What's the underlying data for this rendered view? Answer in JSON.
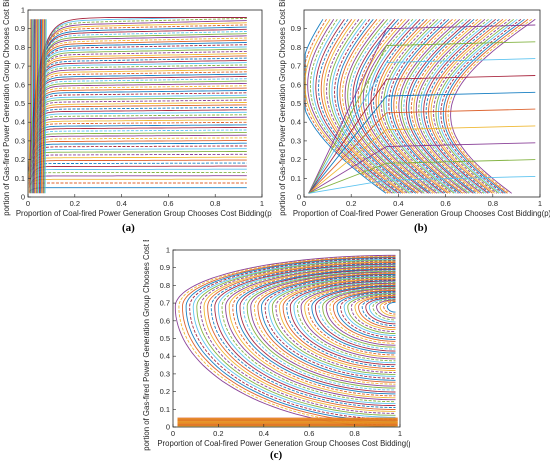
{
  "chart_data": [
    {
      "id": "a",
      "type": "line",
      "caption": "(a)",
      "title": "",
      "xlabel": "Proportion of Coal-fired Power Generation Group Chooses Cost Bidding(p)",
      "ylabel": "portion of Gas-fired Power Generation Group Chooses Cost Bidd",
      "xlim": [
        0,
        1
      ],
      "ylim": [
        0,
        1
      ],
      "xticks": [
        "0",
        "0.2",
        "0.4",
        "0.6",
        "0.8",
        "1"
      ],
      "yticks": [
        "0",
        "0.1",
        "0.2",
        "0.3",
        "0.4",
        "0.5",
        "0.6",
        "0.7",
        "0.8",
        "0.9",
        "1"
      ],
      "pattern": "trajectories rise steeply from p≈0 then flatten toward the upper right",
      "series_count": 70
    },
    {
      "id": "b",
      "type": "line",
      "caption": "(b)",
      "title": "",
      "xlabel": "Proportion of Coal-fired Power Generation Group Chooses Cost Bidding(p)",
      "ylabel": "portion of Gas-fired Power Generation Group Chooses Cost Bidd",
      "xlim": [
        0,
        1
      ],
      "ylim": [
        0,
        1
      ],
      "xticks": [
        "0",
        "0.2",
        "0.4",
        "0.6",
        "0.8",
        "1"
      ],
      "yticks": [
        "0",
        "0.1",
        "0.2",
        "0.3",
        "0.4",
        "0.5",
        "0.6",
        "0.7",
        "0.8",
        "0.9"
      ],
      "pattern": "C-shaped trajectories bending from upper right to lower right, converging near (0, 0) and (1, 0)",
      "series_count": 60
    },
    {
      "id": "c",
      "type": "line",
      "caption": "(c)",
      "title": "",
      "xlabel": "Proportion of Coal-fired Power Generation Group Chooses Cost Bidding(p)",
      "ylabel": "portion of Gas-fired Power Generation Group Chooses Cost Bidd",
      "xlim": [
        0,
        1
      ],
      "ylim": [
        0,
        1
      ],
      "xticks": [
        "0",
        "0.2",
        "0.4",
        "0.6",
        "0.8",
        "1"
      ],
      "yticks": [
        "0",
        "0.1",
        "0.2",
        "0.3",
        "0.4",
        "0.5",
        "0.6",
        "0.7",
        "0.8",
        "0.9",
        "1"
      ],
      "pattern": "closed orbits spiralling around a focus near (0.98, 0.68), with a dense band near y=0",
      "focus": [
        0.98,
        0.68
      ],
      "series_count": 60
    }
  ],
  "colors": [
    "#0072BD",
    "#D95319",
    "#EDB120",
    "#7E2F8E",
    "#77AC30",
    "#4DBEEE",
    "#A2142F"
  ]
}
